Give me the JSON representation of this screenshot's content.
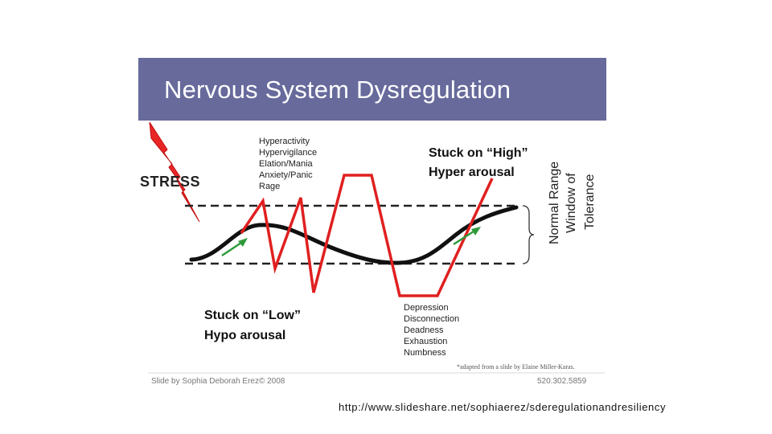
{
  "slide": {
    "title": "Nervous System Dysregulation",
    "stress_label": "STRESS",
    "high_labels": [
      "Hyperactivity",
      "Hypervigilance",
      "Elation/Mania",
      "Anxiety/Panic",
      "Rage"
    ],
    "stuck_high": {
      "line1": "Stuck on “High”",
      "line2": "Hyper arousal"
    },
    "stuck_low": {
      "line1": "Stuck on “Low”",
      "line2": "Hypo arousal"
    },
    "low_labels": [
      "Depression",
      "Disconnection",
      "Deadness",
      "Exhaustion",
      "Numbness"
    ],
    "window_labels": [
      "Normal Range",
      "Window of",
      "Tolerance"
    ],
    "footer_credit": "Slide by Sophia Deborah Erez© 2008",
    "footer_adapted": "*adapted from a slide by Elaine Miller-Karas.",
    "footer_phone": "520.302.5859",
    "colors": {
      "title_bar": "#676a9b",
      "red_line": "#e02020",
      "green_arrow": "#2f9a3a",
      "curve": "#111111"
    }
  },
  "source_url": "http://www.slideshare.net/sophiaerez/sderegulationandresiliency"
}
